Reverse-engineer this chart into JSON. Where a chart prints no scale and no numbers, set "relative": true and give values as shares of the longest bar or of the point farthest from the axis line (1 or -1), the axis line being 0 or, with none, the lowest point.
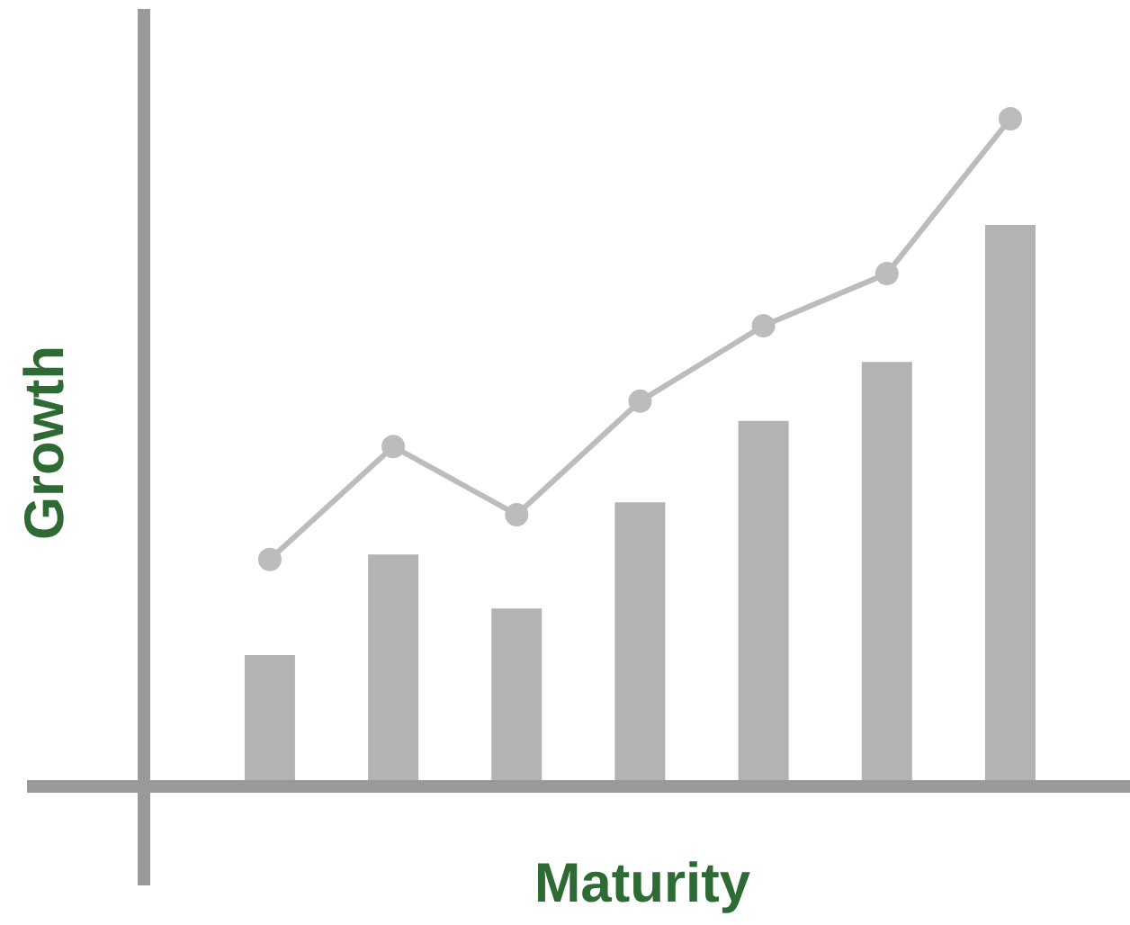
{
  "chart_data": [
    {
      "type": "bar",
      "relative": true,
      "xlabel": "Maturity",
      "ylabel": "Growth",
      "categories": [
        null,
        null,
        null,
        null,
        null,
        null,
        null
      ],
      "color": "#b3b3b3",
      "values": [
        0.234,
        0.413,
        0.317,
        0.506,
        0.651,
        0.756,
        1.0
      ]
    },
    {
      "type": "line",
      "relative": true,
      "categories": [
        null,
        null,
        null,
        null,
        null,
        null,
        null
      ],
      "marker": "circle",
      "line_style": "solid",
      "color": "#bcbcbc",
      "values": [
        0.34,
        0.509,
        0.407,
        0.577,
        0.69,
        0.768,
        1.0
      ]
    }
  ]
}
